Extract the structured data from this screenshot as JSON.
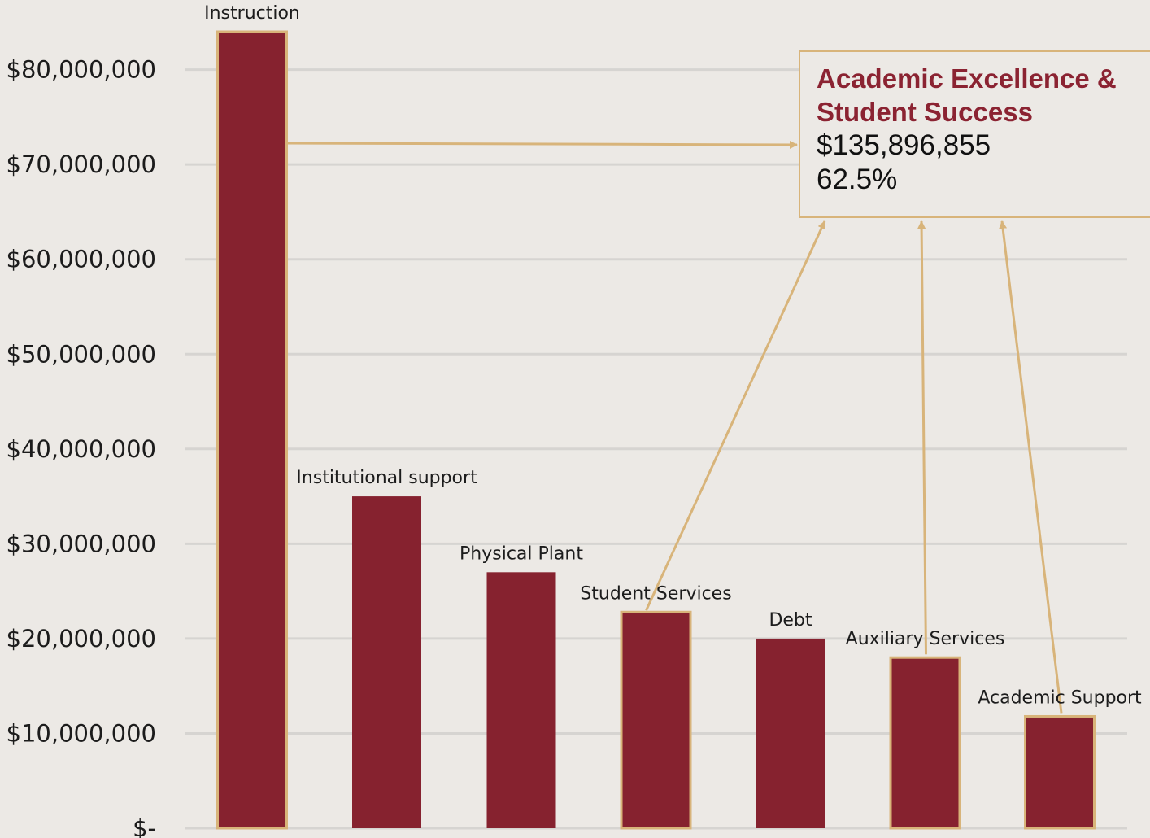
{
  "chart_data": {
    "type": "bar",
    "title": "",
    "xlabel": "",
    "ylabel": "",
    "categories": [
      "Instruction",
      "Institutional support",
      "Physical Plant",
      "Student Services",
      "Debt",
      "Auxiliary Services",
      "Academic Support"
    ],
    "values": [
      84000000,
      35000000,
      27000000,
      22800000,
      20000000,
      18000000,
      11800000
    ],
    "highlighted": [
      "Instruction",
      "Student Services",
      "Auxiliary Services",
      "Academic Support"
    ],
    "ylim": [
      0,
      84000000
    ],
    "yticks": [
      0,
      10000000,
      20000000,
      30000000,
      40000000,
      50000000,
      60000000,
      70000000,
      80000000
    ],
    "ytick_labels": [
      "$-",
      "$10,000,000",
      "$20,000,000",
      "$30,000,000",
      "$40,000,000",
      "$50,000,000",
      "$60,000,000",
      "$70,000,000",
      "$80,000,000"
    ],
    "grid": true,
    "colors": {
      "bar": "#86222F",
      "highlight_outline": "#D8B47A",
      "background": "#ECE9E5",
      "grid": "#D6D4D1"
    }
  },
  "callout": {
    "title_line1": "Academic Excellence &",
    "title_line2": "Student Success",
    "amount": "$135,896,855",
    "percent": "62.5%"
  }
}
